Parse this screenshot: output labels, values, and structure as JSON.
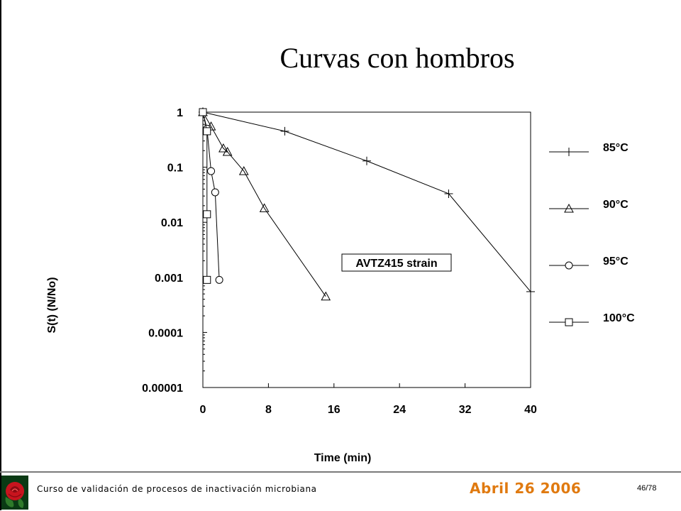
{
  "slide": {
    "title": "Curvas con hombros",
    "footer_course": "Curso de validación de procesos de inactivación microbiana",
    "footer_date": "Abril 26 2006",
    "footer_page": "46/78",
    "date_color": "#e07a10"
  },
  "chart_data": {
    "type": "scatter",
    "xlabel": "Time (min)",
    "ylabel": "S(t)  (N/No)",
    "xlim": [
      0,
      40
    ],
    "ylim": [
      1e-05,
      1
    ],
    "yscale": "log",
    "xticks": [
      "0",
      "8",
      "16",
      "24",
      "32",
      "40"
    ],
    "yticks": [
      "1",
      "0.1",
      "0.01",
      "0.001",
      "0.0001",
      "0.00001"
    ],
    "annotation": "AVTZ415 strain",
    "legend_position": "right",
    "series": [
      {
        "name": "85°C",
        "marker": "plus",
        "x": [
          0,
          10,
          20,
          30,
          40
        ],
        "y": [
          1,
          0.45,
          0.13,
          0.033,
          0.00055
        ]
      },
      {
        "name": "90°C",
        "marker": "triangle",
        "x": [
          0,
          1,
          2.5,
          3,
          5,
          7.5,
          15
        ],
        "y": [
          1,
          0.55,
          0.22,
          0.19,
          0.085,
          0.018,
          0.00045
        ]
      },
      {
        "name": "95°C",
        "marker": "circle",
        "x": [
          0,
          0.5,
          1,
          1.5,
          2
        ],
        "y": [
          1,
          0.5,
          0.085,
          0.035,
          0.0009
        ]
      },
      {
        "name": "100°C",
        "marker": "square",
        "x": [
          0,
          0.5,
          0.5,
          0.5
        ],
        "y": [
          1,
          0.45,
          0.014,
          0.0009
        ]
      }
    ]
  }
}
